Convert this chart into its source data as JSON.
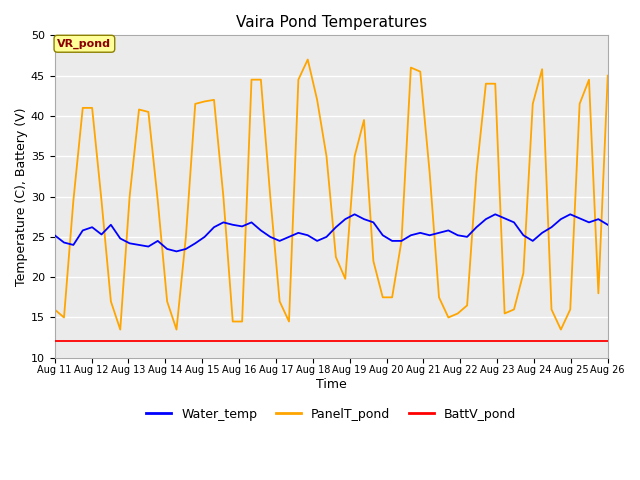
{
  "title": "Vaira Pond Temperatures",
  "xlabel": "Time",
  "ylabel": "Temperature (C), Battery (V)",
  "ylim": [
    10,
    50
  ],
  "x_tick_labels": [
    "Aug 11",
    "Aug 12",
    "Aug 13",
    "Aug 14",
    "Aug 15",
    "Aug 16",
    "Aug 17",
    "Aug 18",
    "Aug 19",
    "Aug 20",
    "Aug 21",
    "Aug 22",
    "Aug 23",
    "Aug 24",
    "Aug 25",
    "Aug 26"
  ],
  "annotation_text": "VR_pond",
  "annotation_color": "#8B0000",
  "annotation_bg": "#FFFF99",
  "bg_color": "#ebebeb",
  "water_color": "#0000FF",
  "panel_color": "#FFA500",
  "batt_color": "#FF0000",
  "water_temp": [
    25.2,
    24.3,
    24.0,
    25.8,
    26.2,
    25.3,
    26.5,
    24.8,
    24.2,
    24.0,
    23.8,
    24.5,
    23.5,
    23.2,
    23.5,
    24.2,
    25.0,
    26.2,
    26.8,
    26.5,
    26.3,
    26.8,
    25.8,
    25.0,
    24.5,
    25.0,
    25.5,
    25.2,
    24.5,
    25.0,
    26.2,
    27.2,
    27.8,
    27.2,
    26.8,
    25.2,
    24.5,
    24.5,
    25.2,
    25.5,
    25.2,
    25.5,
    25.8,
    25.2,
    25.0,
    26.2,
    27.2,
    27.8,
    27.3,
    26.8,
    25.2,
    24.5,
    25.5,
    26.2,
    27.2,
    27.8,
    27.3,
    26.8,
    27.2,
    26.5
  ],
  "panel_temp": [
    16.0,
    15.0,
    29.5,
    41.0,
    41.0,
    29.5,
    17.0,
    13.5,
    30.0,
    40.8,
    40.5,
    29.5,
    17.0,
    13.5,
    25.0,
    41.5,
    41.8,
    42.0,
    30.0,
    14.5,
    14.5,
    44.5,
    44.5,
    30.0,
    17.0,
    14.5,
    44.5,
    47.0,
    42.0,
    35.0,
    22.5,
    19.8,
    35.0,
    39.5,
    22.0,
    17.5,
    17.5,
    24.5,
    46.0,
    45.5,
    33.0,
    17.5,
    15.0,
    15.5,
    16.5,
    33.0,
    44.0,
    44.0,
    15.5,
    16.0,
    20.5,
    41.5,
    45.8,
    16.0,
    13.5,
    16.0,
    41.5,
    44.5,
    18.0,
    45.0
  ],
  "batt_v": [
    12.1,
    12.1,
    12.1,
    12.1,
    12.1,
    12.1,
    12.1,
    12.1,
    12.1,
    12.1,
    12.1,
    12.1,
    12.1,
    12.1,
    12.1,
    12.1,
    12.1,
    12.1,
    12.1,
    12.1,
    12.1,
    12.1,
    12.1,
    12.1,
    12.1,
    12.1,
    12.1,
    12.1,
    12.1,
    12.1,
    12.1,
    12.1,
    12.1,
    12.1,
    12.1,
    12.1,
    12.1,
    12.1,
    12.1,
    12.1,
    12.1,
    12.1,
    12.1,
    12.1,
    12.1,
    12.1,
    12.1,
    12.1,
    12.1,
    12.1,
    12.1,
    12.1,
    12.1,
    12.1,
    12.1,
    12.1,
    12.1,
    12.1,
    12.1,
    12.1
  ],
  "figsize": [
    6.4,
    4.8
  ],
  "dpi": 100
}
